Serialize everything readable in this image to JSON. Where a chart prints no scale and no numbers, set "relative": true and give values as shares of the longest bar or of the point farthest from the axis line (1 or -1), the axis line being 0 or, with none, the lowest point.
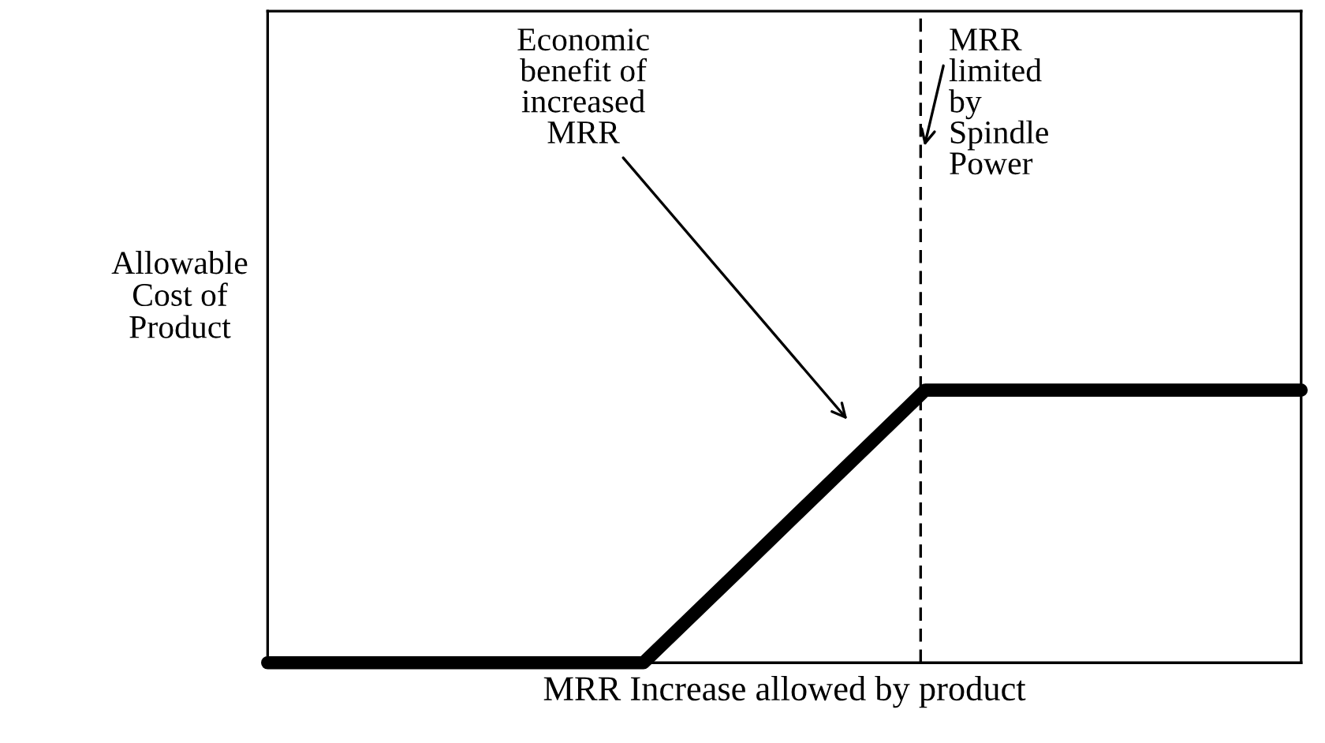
{
  "chart_data": {
    "type": "line",
    "relative": true,
    "xlabel": "MRR Increase allowed by product",
    "ylabel": "Allowable\nCost of\nProduct",
    "categories": [
      null,
      null,
      null,
      null,
      null,
      null,
      null,
      null,
      null,
      null,
      null,
      null
    ],
    "series": [
      {
        "color": "#000000",
        "values": [
          0,
          0,
          0,
          0,
          0,
          0.333,
          0.667,
          1,
          1,
          1,
          1,
          1
        ]
      }
    ],
    "annotations": [
      "Economic\nbenefit of\nincreased\nMRR",
      "MRR\nlimited\nby\nSpindle\nPower"
    ],
    "tick_labels": false,
    "grid": false,
    "legend": false,
    "marker": "none",
    "line_style": "solid"
  }
}
